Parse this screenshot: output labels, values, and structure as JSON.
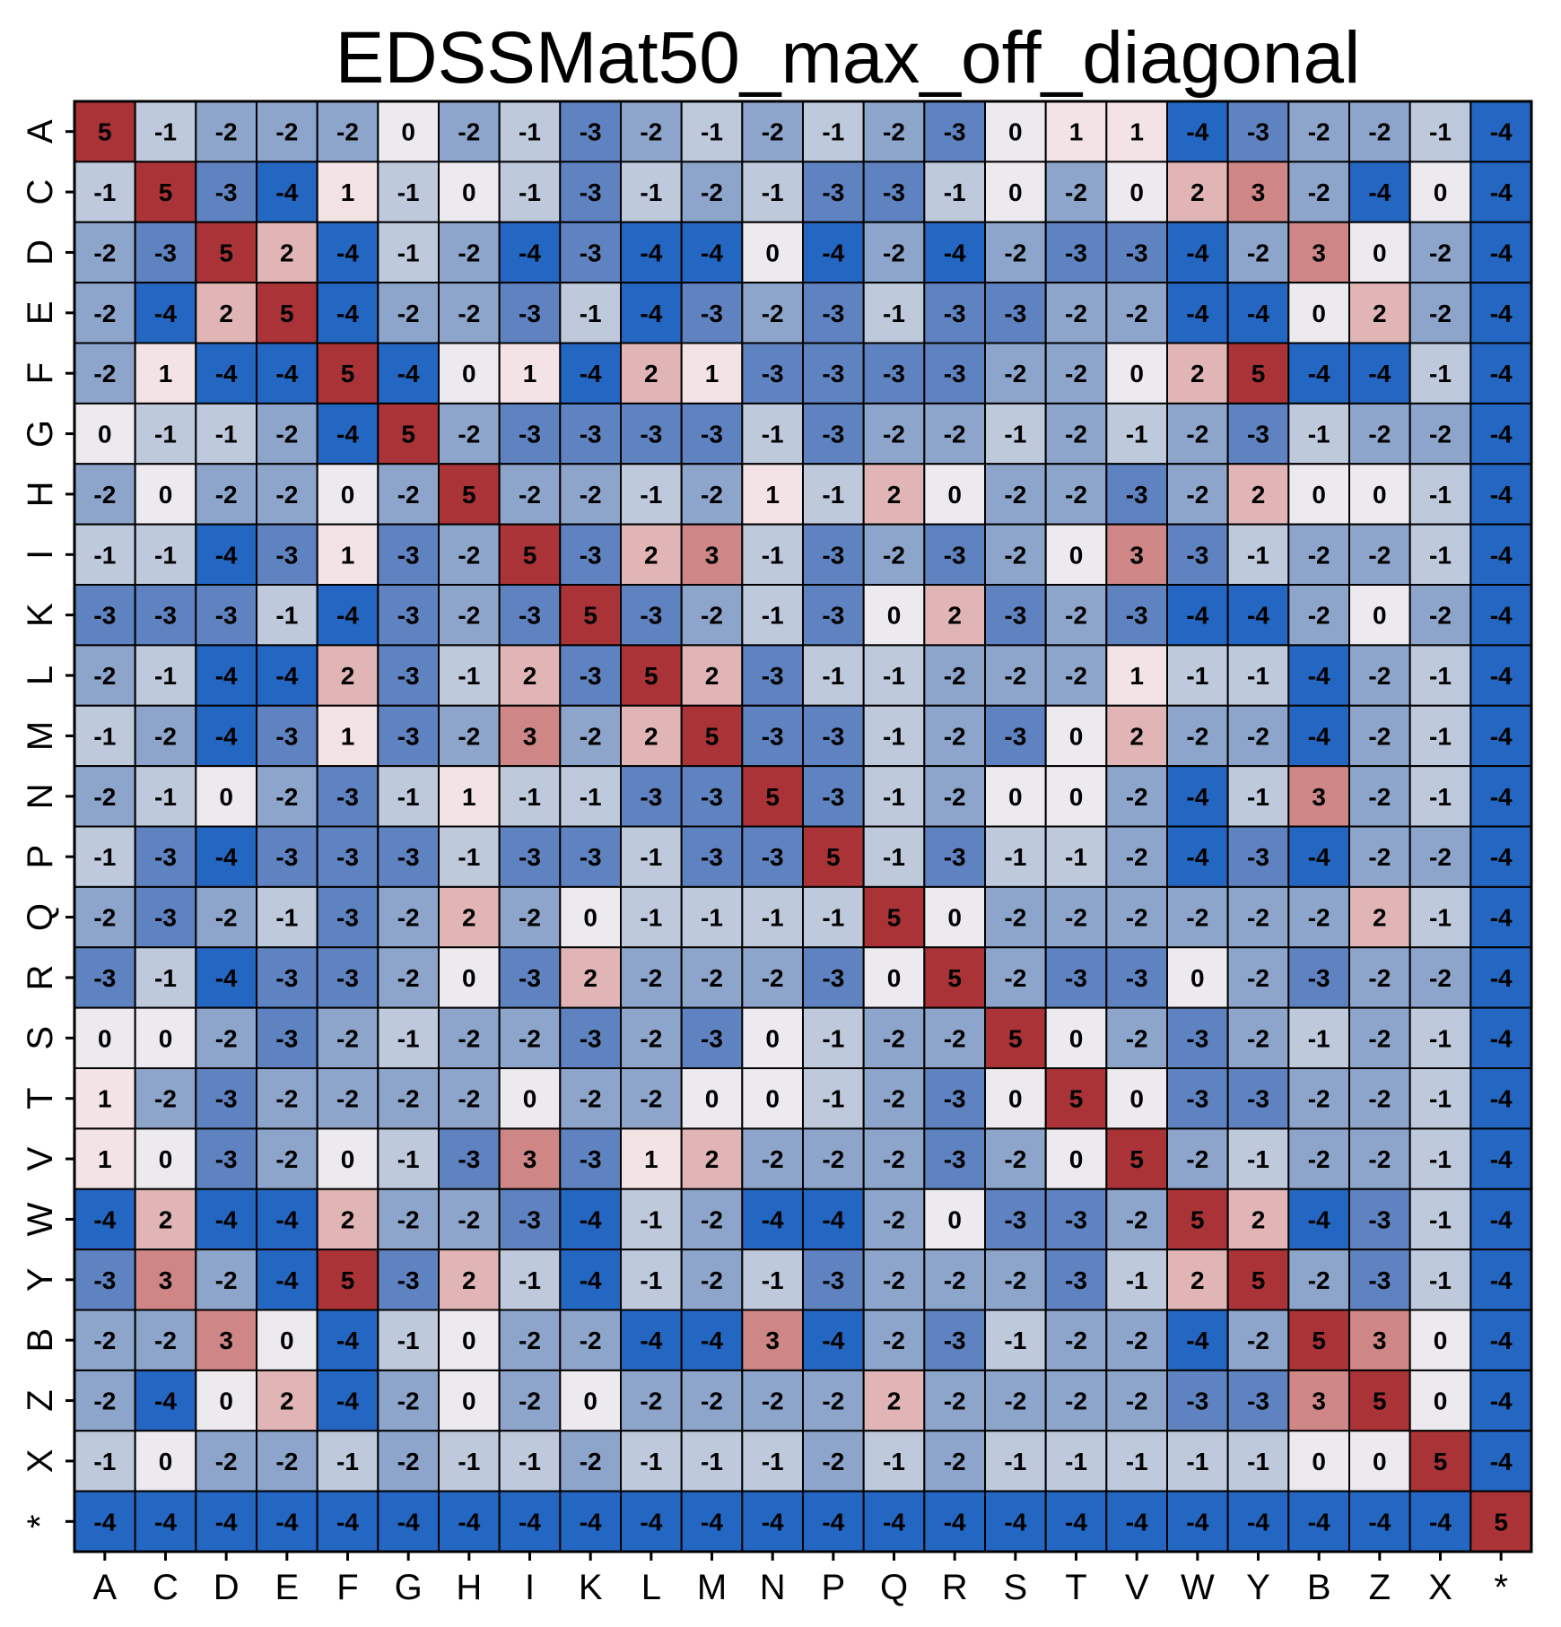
{
  "chart_data": {
    "type": "heatmap",
    "title": "EDSSMat50_max_off_diagonal",
    "x_labels": [
      "A",
      "C",
      "D",
      "E",
      "F",
      "G",
      "H",
      "I",
      "K",
      "L",
      "M",
      "N",
      "P",
      "Q",
      "R",
      "S",
      "T",
      "V",
      "W",
      "Y",
      "B",
      "Z",
      "X",
      "*"
    ],
    "y_labels": [
      "A",
      "C",
      "D",
      "E",
      "F",
      "G",
      "H",
      "I",
      "K",
      "L",
      "M",
      "N",
      "P",
      "Q",
      "R",
      "S",
      "T",
      "V",
      "W",
      "Y",
      "B",
      "Z",
      "X",
      "*"
    ],
    "values": [
      [
        5,
        -1,
        -2,
        -2,
        -2,
        0,
        -2,
        -1,
        -3,
        -2,
        -1,
        -2,
        -1,
        -2,
        -3,
        0,
        1,
        1,
        -4,
        -3,
        -2,
        -2,
        -1,
        -4
      ],
      [
        -1,
        5,
        -3,
        -4,
        1,
        -1,
        0,
        -1,
        -3,
        -1,
        -2,
        -1,
        -3,
        -3,
        -1,
        0,
        -2,
        0,
        2,
        3,
        -2,
        -4,
        0,
        -4
      ],
      [
        -2,
        -3,
        5,
        2,
        -4,
        -1,
        -2,
        -4,
        -3,
        -4,
        -4,
        0,
        -4,
        -2,
        -4,
        -2,
        -3,
        -3,
        -4,
        -2,
        3,
        0,
        -2,
        -4
      ],
      [
        -2,
        -4,
        2,
        5,
        -4,
        -2,
        -2,
        -3,
        -1,
        -4,
        -3,
        -2,
        -3,
        -1,
        -3,
        -3,
        -2,
        -2,
        -4,
        -4,
        0,
        2,
        -2,
        -4
      ],
      [
        -2,
        1,
        -4,
        -4,
        5,
        -4,
        0,
        1,
        -4,
        2,
        1,
        -3,
        -3,
        -3,
        -3,
        -2,
        -2,
        0,
        2,
        5,
        -4,
        -4,
        -1,
        -4
      ],
      [
        0,
        -1,
        -1,
        -2,
        -4,
        5,
        -2,
        -3,
        -3,
        -3,
        -3,
        -1,
        -3,
        -2,
        -2,
        -1,
        -2,
        -1,
        -2,
        -3,
        -1,
        -2,
        -2,
        -4
      ],
      [
        -2,
        0,
        -2,
        -2,
        0,
        -2,
        5,
        -2,
        -2,
        -1,
        -2,
        1,
        -1,
        2,
        0,
        -2,
        -2,
        -3,
        -2,
        2,
        0,
        0,
        -1,
        -4
      ],
      [
        -1,
        -1,
        -4,
        -3,
        1,
        -3,
        -2,
        5,
        -3,
        2,
        3,
        -1,
        -3,
        -2,
        -3,
        -2,
        0,
        3,
        -3,
        -1,
        -2,
        -2,
        -1,
        -4
      ],
      [
        -3,
        -3,
        -3,
        -1,
        -4,
        -3,
        -2,
        -3,
        5,
        -3,
        -2,
        -1,
        -3,
        0,
        2,
        -3,
        -2,
        -3,
        -4,
        -4,
        -2,
        0,
        -2,
        -4
      ],
      [
        -2,
        -1,
        -4,
        -4,
        2,
        -3,
        -1,
        2,
        -3,
        5,
        2,
        -3,
        -1,
        -1,
        -2,
        -2,
        -2,
        1,
        -1,
        -1,
        -4,
        -2,
        -1,
        -4
      ],
      [
        -1,
        -2,
        -4,
        -3,
        1,
        -3,
        -2,
        3,
        -2,
        2,
        5,
        -3,
        -3,
        -1,
        -2,
        -3,
        0,
        2,
        -2,
        -2,
        -4,
        -2,
        -1,
        -4
      ],
      [
        -2,
        -1,
        0,
        -2,
        -3,
        -1,
        1,
        -1,
        -1,
        -3,
        -3,
        5,
        -3,
        -1,
        -2,
        0,
        0,
        -2,
        -4,
        -1,
        3,
        -2,
        -1,
        -4
      ],
      [
        -1,
        -3,
        -4,
        -3,
        -3,
        -3,
        -1,
        -3,
        -3,
        -1,
        -3,
        -3,
        5,
        -1,
        -3,
        -1,
        -1,
        -2,
        -4,
        -3,
        -4,
        -2,
        -2,
        -4
      ],
      [
        -2,
        -3,
        -2,
        -1,
        -3,
        -2,
        2,
        -2,
        0,
        -1,
        -1,
        -1,
        -1,
        5,
        0,
        -2,
        -2,
        -2,
        -2,
        -2,
        -2,
        2,
        -1,
        -4
      ],
      [
        -3,
        -1,
        -4,
        -3,
        -3,
        -2,
        0,
        -3,
        2,
        -2,
        -2,
        -2,
        -3,
        0,
        5,
        -2,
        -3,
        -3,
        0,
        -2,
        -3,
        -2,
        -2,
        -4
      ],
      [
        0,
        0,
        -2,
        -3,
        -2,
        -1,
        -2,
        -2,
        -3,
        -2,
        -3,
        0,
        -1,
        -2,
        -2,
        5,
        0,
        -2,
        -3,
        -2,
        -1,
        -2,
        -1,
        -4
      ],
      [
        1,
        -2,
        -3,
        -2,
        -2,
        -2,
        -2,
        0,
        -2,
        -2,
        0,
        0,
        -1,
        -2,
        -3,
        0,
        5,
        0,
        -3,
        -3,
        -2,
        -2,
        -1,
        -4
      ],
      [
        1,
        0,
        -3,
        -2,
        0,
        -1,
        -3,
        3,
        -3,
        1,
        2,
        -2,
        -2,
        -2,
        -3,
        -2,
        0,
        5,
        -2,
        -1,
        -2,
        -2,
        -1,
        -4
      ],
      [
        -4,
        2,
        -4,
        -4,
        2,
        -2,
        -2,
        -3,
        -4,
        -1,
        -2,
        -4,
        -4,
        -2,
        0,
        -3,
        -3,
        -2,
        5,
        2,
        -4,
        -3,
        -1,
        -4
      ],
      [
        -3,
        3,
        -2,
        -4,
        5,
        -3,
        2,
        -1,
        -4,
        -1,
        -2,
        -1,
        -3,
        -2,
        -2,
        -2,
        -3,
        -1,
        2,
        5,
        -2,
        -3,
        -1,
        -4
      ],
      [
        -2,
        -2,
        3,
        0,
        -4,
        -1,
        0,
        -2,
        -2,
        -4,
        -4,
        3,
        -4,
        -2,
        -3,
        -1,
        -2,
        -2,
        -4,
        -2,
        5,
        3,
        0,
        -4
      ],
      [
        -2,
        -4,
        0,
        2,
        -4,
        -2,
        0,
        -2,
        0,
        -2,
        -2,
        -2,
        -2,
        2,
        -2,
        -2,
        -2,
        -2,
        -3,
        -3,
        3,
        5,
        0,
        -4
      ],
      [
        -1,
        0,
        -2,
        -2,
        -1,
        -2,
        -1,
        -1,
        -2,
        -1,
        -1,
        -1,
        -2,
        -1,
        -2,
        -1,
        -1,
        -1,
        -1,
        -1,
        0,
        0,
        5,
        -4
      ],
      [
        -4,
        -4,
        -4,
        -4,
        -4,
        -4,
        -4,
        -4,
        -4,
        -4,
        -4,
        -4,
        -4,
        -4,
        -4,
        -4,
        -4,
        -4,
        -4,
        -4,
        -4,
        -4,
        -4,
        5
      ]
    ],
    "value_range": [
      -4,
      5
    ],
    "colormap": {
      "-4": "#2467c2",
      "-3": "#5f83c0",
      "-2": "#8ea5cb",
      "-1": "#bfc9dc",
      "0": "#eceaef",
      "1": "#f3e3e4",
      "2": "#e1b5b5",
      "3": "#cf8686",
      "5": "#aa3337"
    },
    "legend": false,
    "xlabel": "",
    "ylabel": ""
  }
}
